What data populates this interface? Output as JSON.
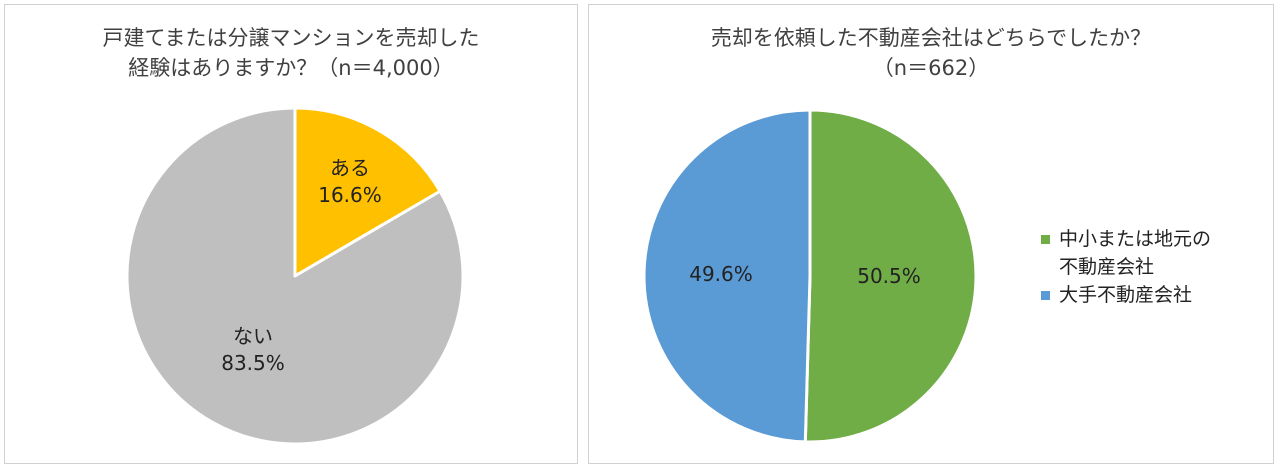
{
  "chart_data": [
    {
      "type": "pie",
      "title_lines": [
        "戸建てまたは分譲マンションを売却した",
        "経験はありますか？（n＝4,000）"
      ],
      "slices": [
        {
          "label": "ある",
          "value": 16.6,
          "value_text": "16.6%",
          "color": "#FFC000"
        },
        {
          "label": "ない",
          "value": 83.5,
          "value_text": "83.5%",
          "color": "#BFBFBF"
        }
      ],
      "legend": "none"
    },
    {
      "type": "pie",
      "title_lines": [
        "売却を依頼した不動産会社はどちらでしたか？",
        "（n＝662）"
      ],
      "slices": [
        {
          "label": "中小または地元の不動産会社",
          "value": 50.5,
          "value_text": "50.5%",
          "color": "#70AD47"
        },
        {
          "label": "大手不動産会社",
          "value": 49.6,
          "value_text": "49.6%",
          "color": "#5B9BD5"
        }
      ],
      "legend": "right",
      "legend_items": [
        {
          "lines": [
            "中小または地元の",
            "不動産会社"
          ],
          "color": "#70AD47"
        },
        {
          "lines": [
            "大手不動産会社"
          ],
          "color": "#5B9BD5"
        }
      ]
    }
  ]
}
